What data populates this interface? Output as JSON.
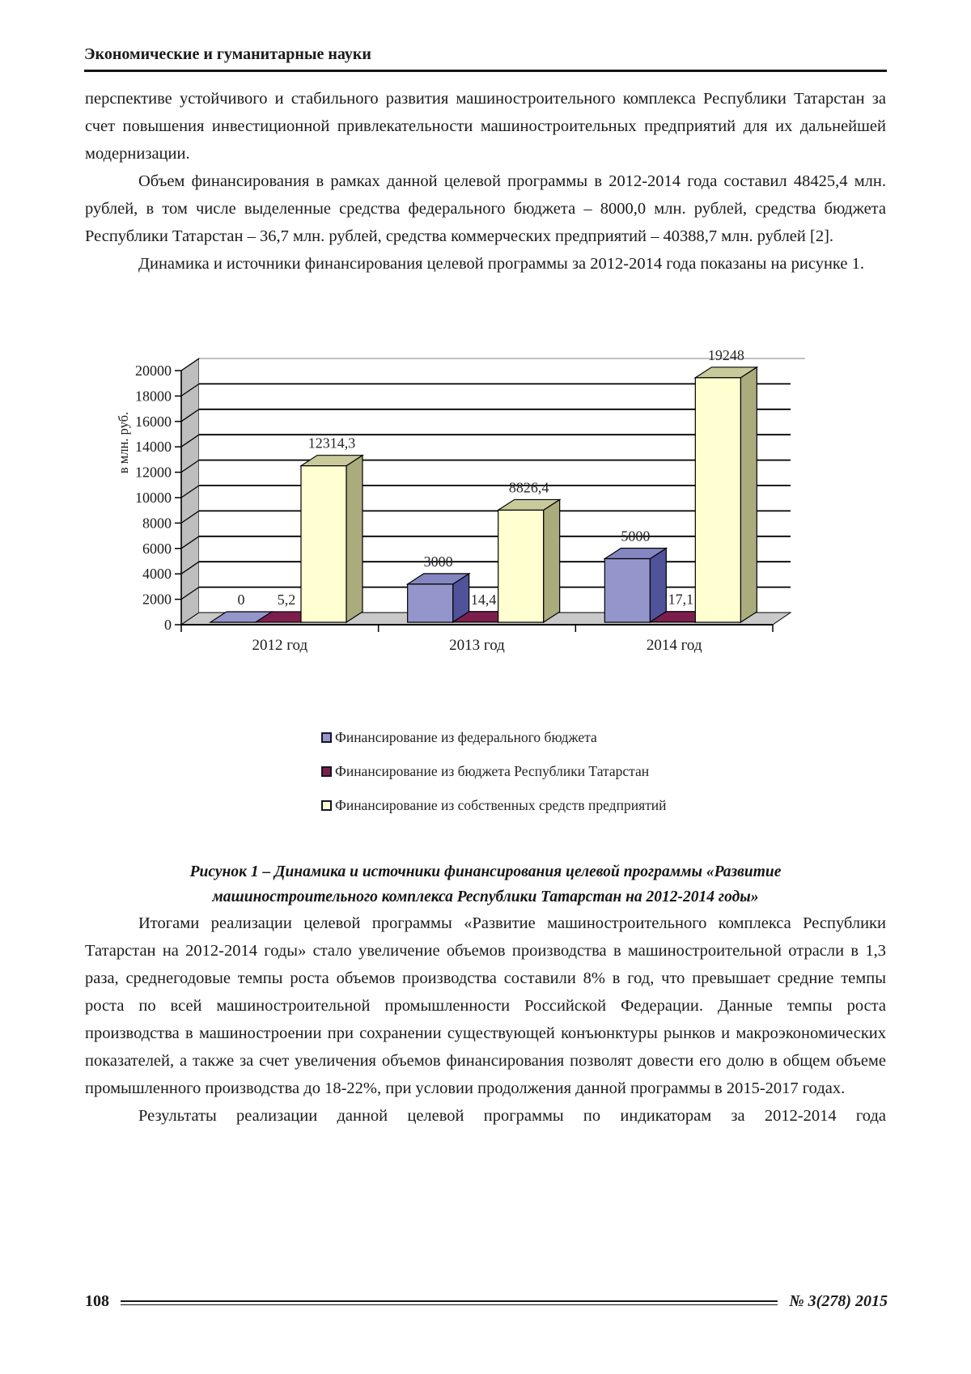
{
  "header": {
    "running_title": "Экономические и гуманитарные науки"
  },
  "paragraphs": {
    "p1": "перспективе устойчивого и стабильного развития машиностроительного комплекса Республики Татарстан за счет повышения инвестиционной привлекательности машиностроительных предприятий для их дальнейшей модернизации.",
    "p2": "Объем финансирования в рамках данной целевой программы в 2012-2014 года составил 48425,4 млн. рублей, в том числе выделенные средства федерального бюджета – 8000,0 млн. рублей, средства бюджета Республики Татарстан – 36,7 млн. рублей, средства коммерческих предприятий – 40388,7 млн. рублей [2].",
    "p3": "Динамика и источники финансирования целевой программы за 2012-2014 года показаны на рисунке 1.",
    "p4": "Итогами реализации целевой программы «Развитие машиностроительного комплекса Республики Татарстан на 2012-2014 годы» стало увеличение объемов производства в машиностроительной отрасли в 1,3 раза, среднегодовые темпы роста объемов производства составили 8% в год, что превышает средние темпы роста по всей машиностроительной промышленности Российской Федерации. Данные темпы роста производства в машиностроении при сохранении существующей конъюнктуры рынков и макроэкономических показателей, а также за счет увеличения объемов финансирования позволят довести его долю в общем объеме промышленного производства до 18-22%, при условии продолжения данной программы в 2015-2017 годах.",
    "p5": "Результаты реализации данной целевой программы по индикаторам за 2012-2014 года"
  },
  "figure": {
    "caption": "Рисунок 1 – Динамика и источники финансирования целевой программы «Развитие машиностроительного комплекса Республики Татарстан на 2012-2014 годы»"
  },
  "chart_data": {
    "type": "bar",
    "subtype": "3d-column",
    "title": "",
    "xlabel": "",
    "ylabel": "в млн. руб.",
    "ylim": [
      0,
      20000
    ],
    "ytick_step": 2000,
    "grid": true,
    "legend_position": "bottom",
    "categories": [
      "2012 год",
      "2013 год",
      "2014 год"
    ],
    "series": [
      {
        "name": "Финансирование из федерального бюджета",
        "values": [
          0,
          3000,
          5000
        ],
        "labels": [
          "0",
          "3000",
          "5000"
        ],
        "color_front": "#9496CB",
        "color_top": "#8486C2",
        "color_side": "#50529A"
      },
      {
        "name": "Финансирование из бюджета Республики Татарстан",
        "values": [
          5.2,
          14.4,
          17.1
        ],
        "labels": [
          "5,2",
          "14,4",
          "17,1"
        ],
        "color_front": "#7C1E4C",
        "color_top": "#8A2A58",
        "color_side": "#551434"
      },
      {
        "name": "Финансирование из собственных средств предприятий",
        "values": [
          12314.3,
          8826.4,
          19248
        ],
        "labels": [
          "12314,3",
          "8826,4",
          "19248"
        ],
        "color_front": "#FFFFD2",
        "color_top": "#C9CA9B",
        "color_side": "#ABAC7D"
      }
    ],
    "colors": {
      "wall": "#BEBEBE",
      "floor": "#C9C9C9",
      "gridline": "#000000",
      "wall_top_line": "#9a9a9a"
    }
  },
  "footer": {
    "page_number": "108",
    "issue": "№ 3(278) 2015"
  }
}
